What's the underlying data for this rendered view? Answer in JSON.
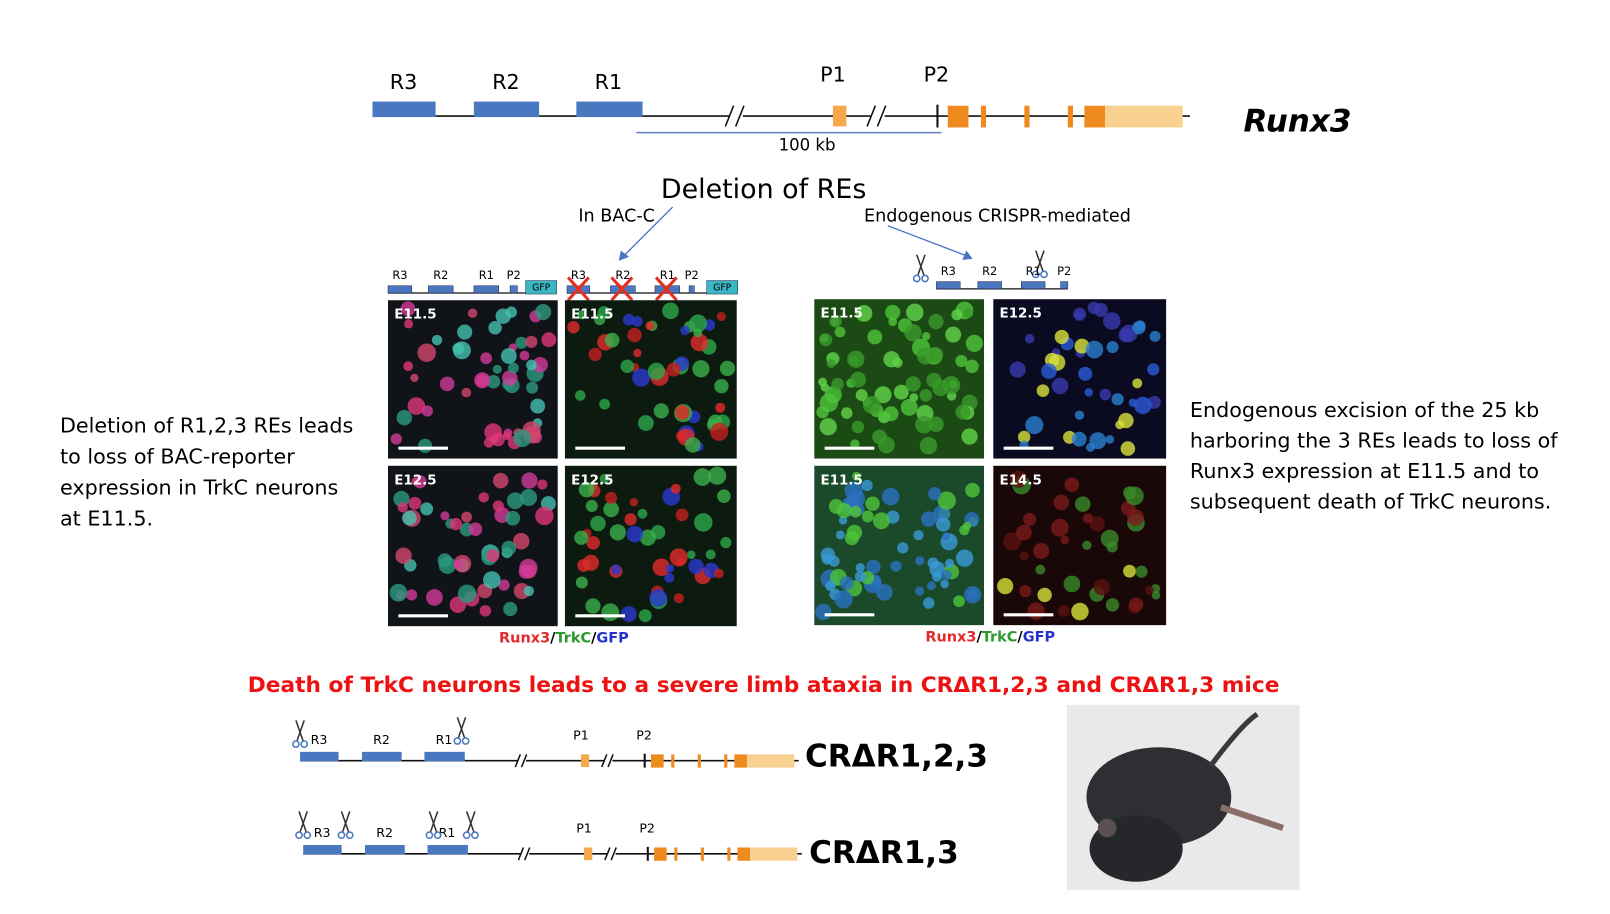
{
  "header": {
    "gene_diagram": {
      "labels": [
        "R3",
        "R2",
        "R1",
        "P1",
        "P2"
      ],
      "scale_label": "100 kb",
      "gene_name": "Runx3"
    }
  },
  "deletion": {
    "title": "Deletion of REs",
    "bac_label": "In BAC-C",
    "crispr_label": "Endogenous CRISPR-mediated"
  },
  "bac_panels": {
    "construct_labels": [
      "R3",
      "R2",
      "R1",
      "P2",
      "GFP"
    ],
    "deleted_construct_labels": [
      "R3",
      "R2",
      "R1",
      "P2",
      "GFP"
    ],
    "stages": [
      "E11.5",
      "E11.5",
      "E12.5",
      "E12.5"
    ],
    "legend": {
      "parts": [
        "Runx3",
        "TrkC",
        "GFP"
      ],
      "separator": "/"
    },
    "description": [
      "Deletion of R1,2,3 REs leads",
      "to loss of BAC-reporter",
      "expression in TrkC neurons",
      "at E11.5."
    ]
  },
  "crispr_panels": {
    "construct_labels": [
      "R3",
      "R2",
      "R1",
      "P2"
    ],
    "stages": [
      "E11.5",
      "E12.5",
      "E11.5",
      "E14.5"
    ],
    "legend": {
      "parts": [
        "Runx3",
        "TrkC",
        "GFP"
      ],
      "separator": "/"
    },
    "description": [
      "Endogenous excision of the 25 kb",
      "harboring the 3 REs leads to loss of",
      "Runx3 expression at E11.5 and to",
      "subsequent death of TrkC neurons."
    ]
  },
  "conclusion": {
    "title": "Death of TrkC neurons leads to a severe limb ataxia in CRΔR1,2,3 and CRΔR1,3 mice",
    "alleles": [
      {
        "labels": [
          "R3",
          "R2",
          "R1",
          "P1",
          "P2"
        ],
        "name": "CRΔR1,2,3"
      },
      {
        "labels": [
          "R3",
          "R2",
          "R1",
          "P1",
          "P2"
        ],
        "name": "CRΔR1,3"
      }
    ]
  }
}
